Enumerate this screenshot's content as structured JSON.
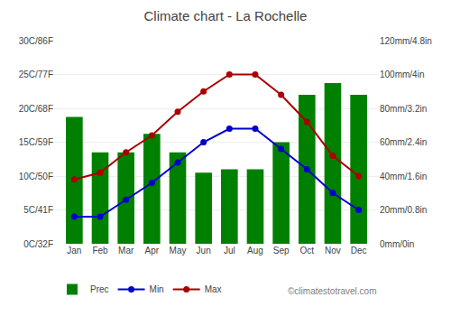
{
  "chart_data": {
    "type": "bar",
    "title": "Climate chart - La Rochelle",
    "categories": [
      "Jan",
      "Feb",
      "Mar",
      "Apr",
      "May",
      "Jun",
      "Jul",
      "Aug",
      "Sep",
      "Oct",
      "Nov",
      "Dec"
    ],
    "series": [
      {
        "name": "Prec",
        "type": "bar",
        "axis": "y2",
        "color": "#008000",
        "values": [
          75,
          54,
          54,
          65,
          54,
          42,
          44,
          44,
          60,
          88,
          95,
          88
        ]
      },
      {
        "name": "Min",
        "type": "line",
        "marker": "circle",
        "line_style": "solid",
        "color": "#0000cc",
        "values": [
          4.0,
          4.0,
          6.5,
          9.0,
          12.0,
          15.0,
          17.0,
          17.0,
          14.0,
          11.0,
          7.5,
          5.0
        ]
      },
      {
        "name": "Max",
        "type": "line",
        "marker": "circle",
        "line_style": "solid",
        "color": "#aa0000",
        "values": [
          9.5,
          10.5,
          13.5,
          16.0,
          19.5,
          22.5,
          25.0,
          25.0,
          22.0,
          18.0,
          13.0,
          10.0
        ]
      }
    ],
    "ylim": [
      0,
      30
    ],
    "yticks": [
      {
        "value": 0,
        "label": "0C/32F"
      },
      {
        "value": 5,
        "label": "5C/41F"
      },
      {
        "value": 10,
        "label": "10C/50F"
      },
      {
        "value": 15,
        "label": "15C/59F"
      },
      {
        "value": 20,
        "label": "20C/68F"
      },
      {
        "value": 25,
        "label": "25C/77F"
      },
      {
        "value": 30,
        "label": "30C/86F"
      }
    ],
    "y2lim": [
      0,
      120
    ],
    "y2ticks": [
      {
        "value": 0,
        "label": "0mm/0in"
      },
      {
        "value": 20,
        "label": "20mm/0.8in"
      },
      {
        "value": 40,
        "label": "40mm/1.6in"
      },
      {
        "value": 60,
        "label": "60mm/2.4in"
      },
      {
        "value": 80,
        "label": "80mm/3.2in"
      },
      {
        "value": 100,
        "label": "100mm/4in"
      },
      {
        "value": 120,
        "label": "120mm/4.8in"
      }
    ],
    "grid": true,
    "legend": "bottom",
    "annotations": [
      "©climatestotravel.com"
    ]
  }
}
